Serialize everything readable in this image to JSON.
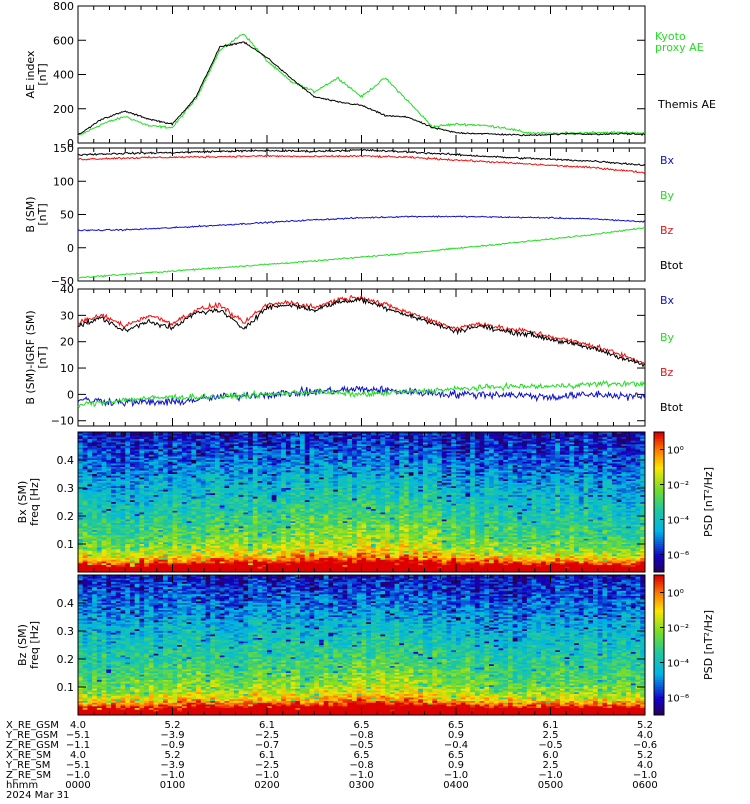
{
  "colors": {
    "black": "#000000",
    "green": "#22dd22",
    "red": "#ee1111",
    "blue": "#1111cc"
  },
  "chart_data": [
    {
      "type": "line",
      "ylabel": "AE index",
      "yunit": "[nT]",
      "ylim": [
        0,
        800
      ],
      "yticks": [
        0,
        200,
        400,
        600,
        800
      ],
      "series": [
        {
          "name": "Kyoto proxy AE",
          "color": "#22dd22",
          "x": [
            0,
            0.25,
            0.5,
            0.75,
            1.0,
            1.25,
            1.5,
            1.75,
            2.0,
            2.25,
            2.5,
            2.75,
            3.0,
            3.25,
            3.5,
            3.75,
            4.0,
            4.25,
            4.5,
            4.75,
            5.0,
            5.25,
            5.5,
            5.75,
            6.0
          ],
          "y": [
            40,
            110,
            155,
            100,
            90,
            260,
            540,
            640,
            480,
            360,
            300,
            380,
            270,
            380,
            240,
            95,
            110,
            105,
            90,
            60,
            55,
            58,
            62,
            60,
            60
          ]
        },
        {
          "name": "Themis AE",
          "color": "#000000",
          "x": [
            0,
            0.25,
            0.5,
            0.75,
            1.0,
            1.25,
            1.5,
            1.75,
            2.0,
            2.25,
            2.5,
            2.75,
            3.0,
            3.25,
            3.5,
            3.75,
            4.0,
            4.25,
            4.5,
            4.75,
            5.0,
            5.25,
            5.5,
            5.75,
            6.0
          ],
          "y": [
            45,
            140,
            185,
            140,
            110,
            270,
            560,
            590,
            500,
            380,
            270,
            240,
            220,
            160,
            150,
            90,
            60,
            55,
            50,
            45,
            50,
            55,
            50,
            55,
            50
          ]
        }
      ]
    },
    {
      "type": "line",
      "ylabel": "B (SM)",
      "yunit": "[nT]",
      "ylim": [
        -50,
        150
      ],
      "yticks": [
        -50,
        0,
        50,
        100,
        150
      ],
      "series": [
        {
          "name": "Bx",
          "color": "#1111cc",
          "x": [
            0,
            0.5,
            1,
            1.5,
            2,
            2.5,
            3,
            3.5,
            4,
            4.5,
            5,
            5.5,
            6
          ],
          "y": [
            26,
            27,
            30,
            34,
            38,
            42,
            45,
            47,
            47,
            46,
            45,
            43,
            39
          ]
        },
        {
          "name": "By",
          "color": "#22dd22",
          "x": [
            0,
            0.5,
            1,
            1.5,
            2,
            2.5,
            3,
            3.5,
            4,
            4.5,
            5,
            5.5,
            6
          ],
          "y": [
            -45,
            -40,
            -35,
            -30,
            -25,
            -20,
            -14,
            -8,
            -1,
            6,
            13,
            21,
            30
          ]
        },
        {
          "name": "Bz",
          "color": "#ee1111",
          "x": [
            0,
            0.5,
            1,
            1.5,
            2,
            2.5,
            3,
            3.5,
            4,
            4.5,
            5,
            5.5,
            6
          ],
          "y": [
            133,
            135,
            136,
            137,
            138,
            137,
            138,
            136,
            132,
            128,
            124,
            120,
            113
          ]
        },
        {
          "name": "Btot",
          "color": "#000000",
          "x": [
            0,
            0.5,
            1,
            1.5,
            2,
            2.5,
            3,
            3.5,
            4,
            4.5,
            5,
            5.5,
            6
          ],
          "y": [
            140,
            142,
            143,
            145,
            146,
            145,
            147,
            144,
            140,
            136,
            133,
            130,
            124
          ]
        }
      ]
    },
    {
      "type": "line",
      "ylabel": "B (SM)-IGRF (SM)",
      "yunit": "[nT]",
      "ylim": [
        -12,
        40
      ],
      "yticks": [
        -10,
        0,
        10,
        20,
        30,
        40
      ],
      "series": [
        {
          "name": "Bx",
          "color": "#1111cc",
          "x": [
            0,
            0.5,
            1,
            1.5,
            2,
            2.5,
            3,
            3.5,
            4,
            4.5,
            5,
            5.5,
            6
          ],
          "y": [
            -2,
            -3,
            -3,
            -1,
            0,
            1,
            2,
            1,
            0,
            0,
            -1,
            0,
            -1
          ]
        },
        {
          "name": "By",
          "color": "#22dd22",
          "x": [
            0,
            0.5,
            1,
            1.5,
            2,
            2.5,
            3,
            3.5,
            4,
            4.5,
            5,
            5.5,
            6
          ],
          "y": [
            -4,
            -2,
            -1,
            -1,
            0,
            1,
            0,
            1,
            2,
            3,
            3,
            4,
            4
          ]
        },
        {
          "name": "Bz",
          "color": "#ee1111",
          "x": [
            0,
            0.25,
            0.5,
            0.75,
            1.0,
            1.25,
            1.5,
            1.75,
            2.0,
            2.25,
            2.5,
            2.75,
            3.0,
            3.25,
            3.5,
            3.75,
            4.0,
            4.25,
            4.5,
            4.75,
            5.0,
            5.25,
            5.5,
            5.75,
            6.0
          ],
          "y": [
            27,
            30,
            26,
            30,
            27,
            32,
            34,
            27,
            34,
            35,
            33,
            36,
            37,
            34,
            31,
            28,
            25,
            27,
            25,
            24,
            22,
            20,
            18,
            15,
            12
          ]
        },
        {
          "name": "Btot",
          "color": "#000000",
          "x": [
            0,
            0.25,
            0.5,
            0.75,
            1.0,
            1.25,
            1.5,
            1.75,
            2.0,
            2.25,
            2.5,
            2.75,
            3.0,
            3.25,
            3.5,
            3.75,
            4.0,
            4.25,
            4.5,
            4.75,
            5.0,
            5.25,
            5.5,
            5.75,
            6.0
          ],
          "y": [
            26,
            29,
            24,
            28,
            25,
            31,
            32,
            25,
            33,
            34,
            32,
            35,
            36,
            33,
            30,
            27,
            24,
            26,
            24,
            23,
            21,
            19,
            17,
            14,
            11
          ]
        }
      ]
    },
    {
      "type": "heatmap",
      "ylabel": "Bx (SM)",
      "yunit": "freq [Hz]",
      "ylim": [
        0,
        0.5
      ],
      "yticks": [
        0.1,
        0.2,
        0.3,
        0.4
      ],
      "colorbar": {
        "label": "PSD [nT²/Hz]",
        "ticks": [
          "10⁰",
          "10⁻²",
          "10⁻⁴",
          "10⁻⁶"
        ],
        "log_range": [
          -7,
          1
        ]
      }
    },
    {
      "type": "heatmap",
      "ylabel": "Bz (SM)",
      "yunit": "freq [Hz]",
      "ylim": [
        0,
        0.5
      ],
      "yticks": [
        0.1,
        0.2,
        0.3,
        0.4
      ],
      "colorbar": {
        "label": "PSD [nT²/Hz]",
        "ticks": [
          "10⁰",
          "10⁻²",
          "10⁻⁴",
          "10⁻⁶"
        ],
        "log_range": [
          -7,
          1
        ]
      }
    }
  ],
  "xaxis": {
    "xlim": [
      0,
      6
    ],
    "ticks": [
      0,
      1,
      2,
      3,
      4,
      5,
      6
    ]
  },
  "ephemeris": [
    {
      "label": "X_RE_GSM",
      "values": [
        "4.0",
        "5.2",
        "6.1",
        "6.5",
        "6.5",
        "6.1",
        "5.2"
      ]
    },
    {
      "label": "Y_RE_GSM",
      "values": [
        "−5.1",
        "−3.9",
        "−2.5",
        "−0.8",
        "0.9",
        "2.5",
        "4.0"
      ]
    },
    {
      "label": "Z_RE_GSM",
      "values": [
        "−1.1",
        "−0.9",
        "−0.7",
        "−0.5",
        "−0.4",
        "−0.5",
        "−0.6"
      ]
    },
    {
      "label": "X_RE_SM",
      "values": [
        "4.0",
        "5.2",
        "6.1",
        "6.5",
        "6.5",
        "6.0",
        "5.2"
      ]
    },
    {
      "label": "Y_RE_SM",
      "values": [
        "−5.1",
        "−3.9",
        "−2.5",
        "−0.8",
        "0.9",
        "2.5",
        "4.0"
      ]
    },
    {
      "label": "Z_RE_SM",
      "values": [
        "−1.0",
        "−1.0",
        "−1.0",
        "−1.0",
        "−1.0",
        "−1.0",
        "−1.0"
      ]
    },
    {
      "label": "hhmm",
      "values": [
        "0000",
        "0100",
        "0200",
        "0300",
        "0400",
        "0500",
        "0600"
      ]
    }
  ],
  "date_label": "2024 Mar 31"
}
